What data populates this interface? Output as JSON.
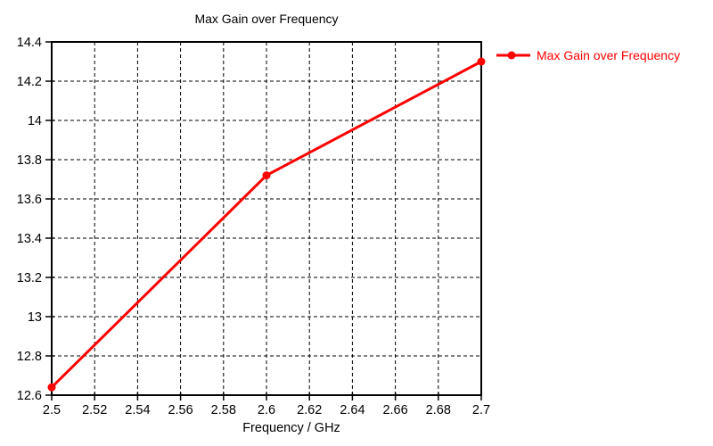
{
  "chart_data": {
    "type": "line",
    "title": "Max Gain over Frequency",
    "xlabel": "Frequency / GHz",
    "ylabel": "",
    "legend_label": "Max Gain over Frequency",
    "legend_position": "top-right-outside",
    "x": [
      2.5,
      2.6,
      2.7
    ],
    "y": [
      12.64,
      13.72,
      14.3
    ],
    "xlim": [
      2.5,
      2.7
    ],
    "ylim": [
      12.6,
      14.4
    ],
    "xtick_step": 0.02,
    "ytick_step": 0.2,
    "xtick_labels": [
      "2.5",
      "2.52",
      "2.54",
      "2.56",
      "2.58",
      "2.6",
      "2.62",
      "2.64",
      "2.66",
      "2.68",
      "2.7"
    ],
    "ytick_labels": [
      "12.6",
      "12.8",
      "13",
      "13.2",
      "13.4",
      "13.6",
      "13.8",
      "14",
      "14.2",
      "14.4"
    ],
    "grid": "dashed",
    "colors": {
      "line": "#ff0000",
      "marker": "#ff0000",
      "grid": "#000000",
      "axis": "#000000",
      "text": "#000000",
      "background": "#ffffff"
    },
    "marker": "circle",
    "marker_radius": 4.5,
    "line_width": 3
  }
}
